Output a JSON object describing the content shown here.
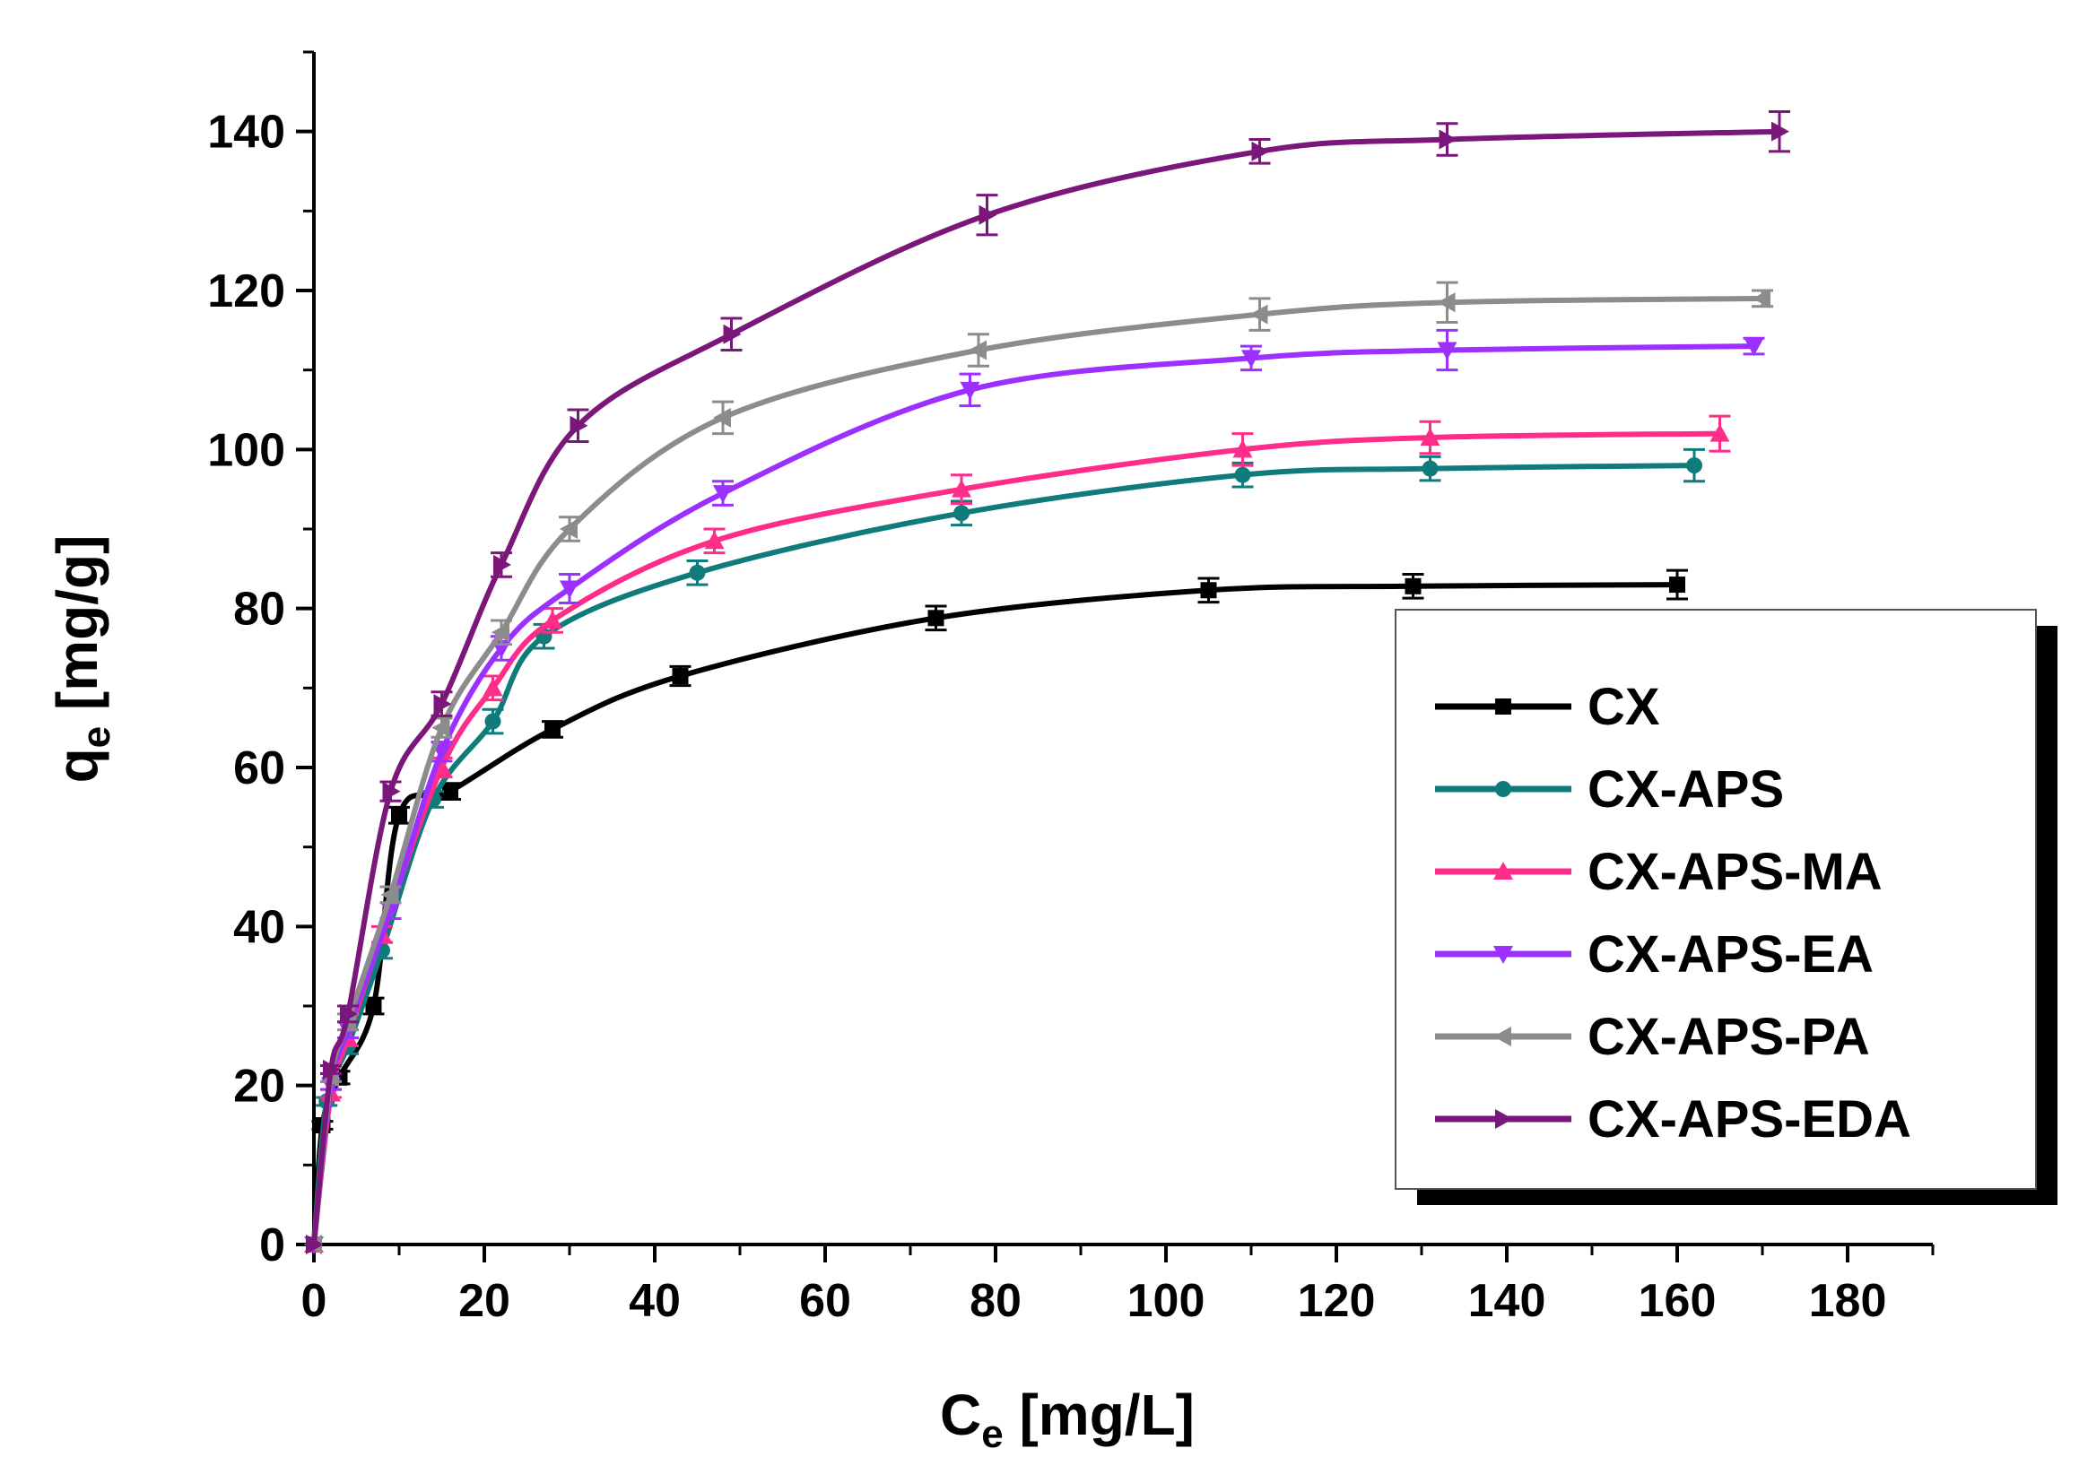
{
  "chart_data": {
    "type": "line",
    "title": "",
    "xlabel": {
      "main": "C",
      "sub": "e",
      "unit": " [mg/L]"
    },
    "ylabel": {
      "main": "q",
      "sub": "e",
      "unit": " [mg/g]"
    },
    "xlim": [
      0,
      190
    ],
    "ylim": [
      0,
      150
    ],
    "xticks": [
      0,
      20,
      40,
      60,
      80,
      100,
      120,
      140,
      160,
      180
    ],
    "yticks": [
      0,
      20,
      40,
      60,
      80,
      100,
      120,
      140
    ],
    "xtick_labels": [
      "0",
      "20",
      "40",
      "60",
      "80",
      "100",
      "120",
      "140",
      "160",
      "180"
    ],
    "ytick_labels": [
      "0",
      "20",
      "40",
      "60",
      "80",
      "100",
      "120",
      "140"
    ],
    "legend_position": "lower-right",
    "series": [
      {
        "name": "CX",
        "color": "#000000",
        "marker": "square",
        "points": [
          [
            0,
            0
          ],
          [
            1,
            15
          ],
          [
            3,
            21
          ],
          [
            7,
            30
          ],
          [
            10,
            54
          ],
          [
            16,
            57
          ],
          [
            28,
            64.8
          ],
          [
            43,
            71.5
          ],
          [
            73,
            78.8
          ],
          [
            105,
            82.3
          ],
          [
            129,
            82.8
          ],
          [
            160,
            83
          ]
        ],
        "errors": [
          0,
          0.5,
          0.8,
          1,
          1,
          1,
          1,
          1.2,
          1.5,
          1.5,
          1.5,
          1.8
        ]
      },
      {
        "name": "CX-APS",
        "color": "#0f7c7b",
        "marker": "circle",
        "points": [
          [
            0,
            0
          ],
          [
            1.5,
            18
          ],
          [
            4,
            25
          ],
          [
            8,
            37
          ],
          [
            14,
            56
          ],
          [
            21,
            65.8
          ],
          [
            27,
            76.5
          ],
          [
            45,
            84.5
          ],
          [
            76,
            92
          ],
          [
            109,
            96.8
          ],
          [
            131,
            97.6
          ],
          [
            162,
            98
          ]
        ],
        "errors": [
          0,
          0.5,
          1,
          1,
          1,
          1.5,
          1.5,
          1.5,
          1.5,
          1.5,
          1.5,
          2
        ]
      },
      {
        "name": "CX-APS-MA",
        "color": "#ff2d8a",
        "marker": "triangle-up",
        "points": [
          [
            0,
            0
          ],
          [
            2,
            19
          ],
          [
            4,
            26
          ],
          [
            8,
            39
          ],
          [
            15,
            60
          ],
          [
            21,
            70
          ],
          [
            28,
            78.5
          ],
          [
            47,
            88.5
          ],
          [
            76,
            95
          ],
          [
            109,
            100
          ],
          [
            131,
            101.5
          ],
          [
            165,
            102
          ]
        ],
        "errors": [
          0,
          0.5,
          1,
          1,
          1.2,
          1.5,
          1.5,
          1.5,
          1.8,
          2,
          2,
          2.2
        ]
      },
      {
        "name": "CX-APS-EA",
        "color": "#9b30ff",
        "marker": "triangle-down",
        "points": [
          [
            0,
            0
          ],
          [
            2,
            20
          ],
          [
            4,
            27
          ],
          [
            9,
            42
          ],
          [
            15,
            62
          ],
          [
            22,
            75
          ],
          [
            30,
            82.5
          ],
          [
            48,
            94.5
          ],
          [
            77,
            107.5
          ],
          [
            110,
            111.5
          ],
          [
            133,
            112.5
          ],
          [
            169,
            113
          ]
        ],
        "errors": [
          0,
          0.5,
          1,
          1,
          1.2,
          1.5,
          1.8,
          1.5,
          2,
          1.5,
          2.5,
          1
        ]
      },
      {
        "name": "CX-APS-PA",
        "color": "#8c8c8c",
        "marker": "triangle-left",
        "points": [
          [
            0,
            0
          ],
          [
            2,
            21
          ],
          [
            4,
            28
          ],
          [
            9,
            44
          ],
          [
            15,
            65
          ],
          [
            22,
            77
          ],
          [
            30,
            90
          ],
          [
            48,
            104
          ],
          [
            78,
            112.5
          ],
          [
            111,
            117
          ],
          [
            133,
            118.5
          ],
          [
            170,
            119
          ]
        ],
        "errors": [
          0,
          0.5,
          1,
          1,
          1.2,
          1.5,
          1.5,
          2,
          2,
          2,
          2.5,
          1
        ]
      },
      {
        "name": "CX-APS-EDA",
        "color": "#7b177b",
        "marker": "triangle-right",
        "points": [
          [
            0,
            0
          ],
          [
            2,
            22
          ],
          [
            4,
            29
          ],
          [
            9,
            57
          ],
          [
            15,
            68
          ],
          [
            22,
            85.5
          ],
          [
            31,
            103
          ],
          [
            49,
            114.5
          ],
          [
            79,
            129.5
          ],
          [
            111,
            137.5
          ],
          [
            133,
            139
          ],
          [
            172,
            140
          ]
        ],
        "errors": [
          0,
          0.5,
          1,
          1.2,
          1.5,
          1.5,
          2,
          2,
          2.5,
          1.5,
          2,
          2.5
        ]
      }
    ]
  }
}
